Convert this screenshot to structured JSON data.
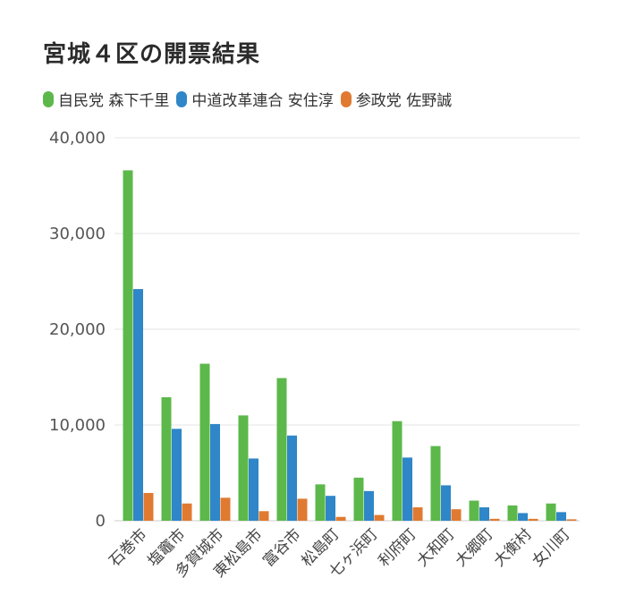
{
  "title": "宮城４区の開票結果",
  "chart_data": {
    "type": "bar",
    "categories": [
      "石巻市",
      "塩竈市",
      "多賀城市",
      "東松島市",
      "富谷市",
      "松島町",
      "七ヶ浜町",
      "利府町",
      "大和町",
      "大郷町",
      "大衡村",
      "女川町"
    ],
    "series": [
      {
        "name": "自民党 森下千里",
        "color": "#5cb84a",
        "values": [
          36600,
          12900,
          16400,
          11000,
          14900,
          3800,
          4500,
          10400,
          7800,
          2100,
          1600,
          1800
        ]
      },
      {
        "name": "中道改革連合 安住淳",
        "color": "#2f86c8",
        "values": [
          24200,
          9600,
          10100,
          6500,
          8900,
          2600,
          3100,
          6600,
          3700,
          1400,
          800,
          900
        ]
      },
      {
        "name": "参政党 佐野誠",
        "color": "#e07a30",
        "values": [
          2900,
          1800,
          2400,
          1000,
          2300,
          400,
          600,
          1400,
          1200,
          200,
          200,
          150
        ]
      }
    ],
    "ylim": [
      0,
      40000
    ],
    "yticks": [
      0,
      10000,
      20000,
      30000,
      40000
    ],
    "ytick_labels": [
      "0",
      "10,000",
      "20,000",
      "30,000",
      "40,000"
    ],
    "grid": true,
    "legend_position": "top-left"
  }
}
